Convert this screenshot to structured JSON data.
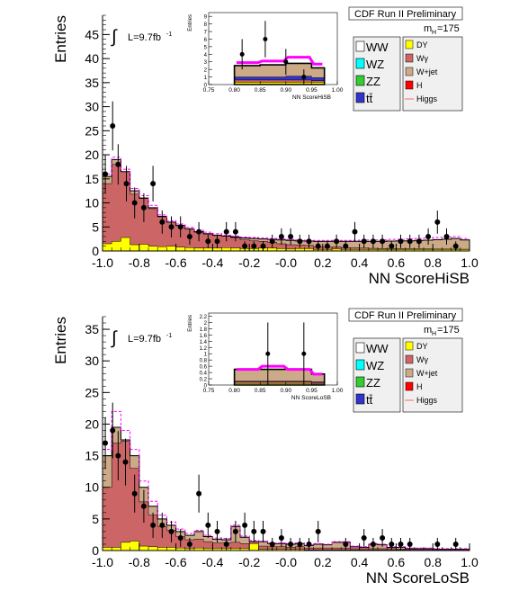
{
  "legend_colors": {
    "WW": "#ffffff",
    "WZ": "#00ffff",
    "ZZ": "#33cc33",
    "tt": "#3333cc",
    "DY": "#ffff00",
    "Wg": "#cc6666",
    "Wjet": "#ccaa88",
    "H": "#ff0000",
    "Higgs": "#ff6666",
    "signal": "#ff00ff",
    "data": "#000000"
  },
  "chart_data": [
    {
      "type": "bar",
      "panel_title": "CDF Run II Preliminary",
      "mass_label": "m",
      "mass_sub": "H",
      "mass_value": "=175",
      "lumi_prefix": "L=9.7fb",
      "lumi_sup": "-1",
      "integral_symbol": "∫",
      "xlabel": "NN ScoreHiSB",
      "ylabel": "Entries",
      "xlim": [
        -1.0,
        1.0
      ],
      "ylim": [
        0,
        49
      ],
      "y_ticks": [
        0,
        5,
        10,
        15,
        20,
        25,
        30,
        35,
        40,
        45
      ],
      "x_ticks": [
        "-1.0",
        "-0.8",
        "-0.6",
        "-0.4",
        "-0.2",
        "-0.0",
        "0.2",
        "0.4",
        "0.6",
        "0.8",
        "1.0"
      ],
      "legend_left": [
        "WW",
        "WZ",
        "ZZ",
        "tt̄"
      ],
      "legend_right": [
        "DY",
        "Wγ",
        "W+jet",
        "H",
        "Higgs"
      ],
      "bkg_total": [
        15.5,
        19,
        16.5,
        12.5,
        11,
        9,
        7.2,
        6,
        5.3,
        4.6,
        4,
        3.6,
        3.3,
        3.1,
        2.9,
        2.7,
        2.6,
        2.5,
        2.4,
        2.3,
        2.2,
        2.1,
        2.05,
        2.0,
        2.0,
        2.0,
        2.0,
        2.0,
        2.0,
        2.0,
        2.0,
        2.05,
        2.1,
        2.1,
        2.2,
        2.25,
        2.35,
        2.45,
        2.6,
        2.3
      ],
      "wg_part": [
        12.5,
        16,
        14,
        10.5,
        9.5,
        7.8,
        6.2,
        5.2,
        4.5,
        3.9,
        3.3,
        2.9,
        2.6,
        2.4,
        2.1,
        1.8,
        1.6,
        1.4,
        1.2,
        1.0,
        0.9,
        0.75,
        0.65,
        0.55,
        0.5,
        0.45,
        0.4,
        0.35,
        0.3,
        0.25,
        0.22,
        0.2,
        0.18,
        0.16,
        0.14,
        0.12,
        0.1,
        0.1,
        0.08,
        0.06
      ],
      "dy_part": [
        1.5,
        2.0,
        2.8,
        1.3,
        1.4,
        1.0,
        0.9,
        1.0,
        0.8,
        0.7,
        0.6,
        0.6,
        0.6,
        0.7,
        0.6,
        0.5,
        0.5,
        0.6,
        0.6,
        0.5,
        0.4,
        0.5,
        0.5,
        0.3,
        0.3,
        0.4,
        0.3,
        0.3,
        0.3,
        0.3,
        0.3,
        0.3,
        0.3,
        0.3,
        0.3,
        0.3,
        0.3,
        0.3,
        0.3,
        0.3
      ],
      "wjet_part": [
        1.0,
        0.8,
        0.6,
        0.5,
        0.4,
        0.4,
        0.3,
        0.3,
        0.3,
        0.3,
        0.3,
        0.4,
        0.4,
        0.4,
        0.4,
        0.4,
        0.4,
        0.4,
        0.4,
        0.4,
        0.4,
        0.4,
        0.4,
        0.4,
        0.4,
        0.4,
        0.4,
        0.4,
        0.4,
        0.4,
        0.4,
        0.4,
        0.4,
        0.4,
        0.4,
        0.4,
        0.4,
        0.4,
        0.4,
        0.4
      ],
      "signal": [
        16,
        19.5,
        17,
        13,
        11.5,
        9.5,
        7.5,
        6.3,
        5.6,
        4.9,
        4.3,
        3.9,
        3.6,
        3.3,
        3.1,
        2.9,
        2.8,
        2.7,
        2.6,
        2.5,
        2.4,
        2.3,
        2.2,
        2.2,
        2.2,
        2.2,
        2.2,
        2.2,
        2.3,
        2.3,
        2.3,
        2.4,
        2.4,
        2.5,
        2.6,
        2.7,
        2.8,
        2.9,
        3.0,
        2.6
      ],
      "data_points": [
        {
          "x": -0.985,
          "y": 16,
          "err": 4
        },
        {
          "x": -0.945,
          "y": 26,
          "err": 5.1
        },
        {
          "x": -0.915,
          "y": 18,
          "err": 4.2
        },
        {
          "x": -0.87,
          "y": 14,
          "err": 3.7
        },
        {
          "x": -0.825,
          "y": 10,
          "err": 3.2
        },
        {
          "x": -0.775,
          "y": 9,
          "err": 3
        },
        {
          "x": -0.725,
          "y": 14,
          "err": 3.7
        },
        {
          "x": -0.675,
          "y": 6,
          "err": 2.4
        },
        {
          "x": -0.625,
          "y": 5,
          "err": 2.2
        },
        {
          "x": -0.575,
          "y": 5,
          "err": 2.2
        },
        {
          "x": -0.525,
          "y": 3,
          "err": 1.7
        },
        {
          "x": -0.475,
          "y": 4,
          "err": 2
        },
        {
          "x": -0.425,
          "y": 2,
          "err": 1.4
        },
        {
          "x": -0.375,
          "y": 2,
          "err": 1.4
        },
        {
          "x": -0.325,
          "y": 4,
          "err": 2
        },
        {
          "x": -0.275,
          "y": 4,
          "err": 2
        },
        {
          "x": -0.225,
          "y": 1,
          "err": 1
        },
        {
          "x": -0.175,
          "y": 1,
          "err": 1
        },
        {
          "x": -0.125,
          "y": 1,
          "err": 1
        },
        {
          "x": -0.075,
          "y": 2,
          "err": 1.4
        },
        {
          "x": -0.025,
          "y": 3,
          "err": 1.7
        },
        {
          "x": 0.025,
          "y": 3,
          "err": 1.7
        },
        {
          "x": 0.075,
          "y": 2,
          "err": 1.4
        },
        {
          "x": 0.125,
          "y": 2,
          "err": 1.4
        },
        {
          "x": 0.175,
          "y": 1,
          "err": 1
        },
        {
          "x": 0.225,
          "y": 1,
          "err": 1
        },
        {
          "x": 0.275,
          "y": 2,
          "err": 1.4
        },
        {
          "x": 0.325,
          "y": 1,
          "err": 1
        },
        {
          "x": 0.375,
          "y": 4,
          "err": 2
        },
        {
          "x": 0.425,
          "y": 2,
          "err": 1.4
        },
        {
          "x": 0.475,
          "y": 2,
          "err": 1.4
        },
        {
          "x": 0.525,
          "y": 2,
          "err": 1.4
        },
        {
          "x": 0.575,
          "y": 1,
          "err": 1
        },
        {
          "x": 0.625,
          "y": 2,
          "err": 1.4
        },
        {
          "x": 0.675,
          "y": 2,
          "err": 1.4
        },
        {
          "x": 0.725,
          "y": 2,
          "err": 1.4
        },
        {
          "x": 0.775,
          "y": 3,
          "err": 1.7
        },
        {
          "x": 0.825,
          "y": 6,
          "err": 2.4
        },
        {
          "x": 0.875,
          "y": 3,
          "err": 1.7
        },
        {
          "x": 0.925,
          "y": 1,
          "err": 1
        }
      ],
      "inset": {
        "xlabel": "NN ScoreHiSB",
        "ylabel": "Entries",
        "xlim": [
          0.75,
          1.0
        ],
        "ylim": [
          0,
          9.5
        ],
        "y_ticks": [
          0,
          1,
          2,
          3,
          4,
          5,
          6,
          7,
          8,
          9
        ],
        "x_ticks": [
          "0.75",
          "0.80",
          "0.85",
          "0.90",
          "0.95",
          "1.00"
        ],
        "bin_edges": [
          0.8,
          0.85,
          0.9,
          0.95,
          0.975
        ],
        "bkg_total": [
          2.5,
          2.6,
          2.8,
          2.2
        ],
        "wg_part": [
          0.3,
          0.3,
          0.3,
          0.2
        ],
        "dy_part": [
          0.3,
          0.3,
          0.3,
          0.3
        ],
        "wjet_part": [
          1.0,
          1.0,
          1.1,
          0.9
        ],
        "tt_part": [
          0.4,
          0.4,
          0.5,
          0.4
        ],
        "signal": [
          2.9,
          3.1,
          3.6,
          2.7
        ],
        "data_points": [
          {
            "x": 0.815,
            "y": 4,
            "err": 2
          },
          {
            "x": 0.86,
            "y": 6,
            "err": 2.4
          },
          {
            "x": 0.9,
            "y": 3,
            "err": 1.7
          },
          {
            "x": 0.935,
            "y": 1,
            "err": 1
          }
        ]
      }
    },
    {
      "type": "bar",
      "panel_title": "CDF Run II Preliminary",
      "mass_label": "m",
      "mass_sub": "H",
      "mass_value": "=175",
      "lumi_prefix": "L=9.7fb",
      "lumi_sup": "-1",
      "integral_symbol": "∫",
      "xlabel": "NN ScoreLoSB",
      "ylabel": "Entries",
      "xlim": [
        -1.0,
        1.0
      ],
      "ylim": [
        0,
        37
      ],
      "y_ticks": [
        0,
        5,
        10,
        15,
        20,
        25,
        30,
        35
      ],
      "x_ticks": [
        "-1.0",
        "-0.8",
        "-0.6",
        "-0.4",
        "-0.2",
        "-0.0",
        "0.2",
        "0.4",
        "0.6",
        "0.8",
        "1.0"
      ],
      "legend_left": [
        "WW",
        "WZ",
        "ZZ",
        "tt̄"
      ],
      "legend_right": [
        "DY",
        "Wγ",
        "W+jet",
        "H",
        "Higgs"
      ],
      "bkg_total": [
        15,
        19.5,
        17.5,
        15,
        10,
        7,
        5,
        4,
        3,
        2.4,
        3,
        2.2,
        1.8,
        1.7,
        3.8,
        2.1,
        1.4,
        1.4,
        1.1,
        1.1,
        1.0,
        1.1,
        0.8,
        1.0,
        0.9,
        1.3,
        1.3,
        0.6,
        0.5,
        1.0,
        0.9,
        0.5,
        0.5,
        0.3,
        0.3,
        0.3,
        0.2,
        0.2,
        0.2,
        0.2
      ],
      "wg_part": [
        9.5,
        16.5,
        16,
        11.5,
        7,
        5,
        3.3,
        2.7,
        1.8,
        1.4,
        1.4,
        1.1,
        0.9,
        0.9,
        1.0,
        0.8,
        0.5,
        0.5,
        0.4,
        0.4,
        0.3,
        0.4,
        0.3,
        0.3,
        0.3,
        0.3,
        0.3,
        0.2,
        0.2,
        0.2,
        0.2,
        0.2,
        0.1,
        0.1,
        0.1,
        0.1,
        0.1,
        0.1,
        0.1,
        0.1
      ],
      "dy_part": [
        0.5,
        0.5,
        1.3,
        1.5,
        0.7,
        0.6,
        0.5,
        0.5,
        0.4,
        0.3,
        0.4,
        0.3,
        0.3,
        0.3,
        0.3,
        0.3,
        1.1,
        0.2,
        0.2,
        0.2,
        0.2,
        0.2,
        0.1,
        0.1,
        0.1,
        0.1,
        0.1,
        0.1,
        0.1,
        0.1,
        0.1,
        0.1,
        0.1,
        0.05,
        0.05,
        0.05,
        0.05,
        0.05,
        0.05,
        0.05
      ],
      "wjet_part": [
        4.5,
        2.2,
        0.2,
        1.8,
        2.0,
        1.2,
        1.0,
        0.6,
        0.6,
        0.5,
        1.0,
        0.6,
        0.4,
        0.3,
        2.3,
        0.8,
        0.3,
        0.5,
        0.3,
        0.3,
        0.3,
        0.3,
        0.2,
        0.4,
        0.3,
        0.7,
        0.7,
        0.2,
        0.1,
        0.5,
        0.4,
        0.1,
        0.2,
        0.1,
        0.1,
        0.1,
        0.05,
        0.05,
        0.05,
        0.05
      ],
      "signal": [
        16,
        22,
        19,
        16,
        11,
        7.8,
        5.6,
        4.5,
        3.4,
        2.7,
        3.2,
        2.4,
        2.0,
        1.9,
        4.0,
        2.3,
        1.6,
        1.5,
        1.2,
        1.2,
        1.1,
        1.2,
        0.9,
        1.1,
        1.0,
        1.4,
        1.4,
        0.7,
        0.6,
        1.1,
        1.0,
        0.6,
        0.6,
        0.4,
        0.4,
        0.4,
        0.3,
        0.3,
        0.3,
        0.3
      ],
      "data_points": [
        {
          "x": -0.985,
          "y": 17,
          "err": 4.1
        },
        {
          "x": -0.945,
          "y": 19,
          "err": 4.4
        },
        {
          "x": -0.915,
          "y": 15,
          "err": 3.9
        },
        {
          "x": -0.875,
          "y": 14,
          "err": 3.7
        },
        {
          "x": -0.825,
          "y": 9,
          "err": 3
        },
        {
          "x": -0.775,
          "y": 7,
          "err": 2.6
        },
        {
          "x": -0.725,
          "y": 4,
          "err": 2
        },
        {
          "x": -0.675,
          "y": 4,
          "err": 2
        },
        {
          "x": -0.625,
          "y": 3,
          "err": 1.7
        },
        {
          "x": -0.575,
          "y": 2,
          "err": 1.4
        },
        {
          "x": -0.525,
          "y": 1,
          "err": 1
        },
        {
          "x": -0.475,
          "y": 9,
          "err": 3
        },
        {
          "x": -0.425,
          "y": 4,
          "err": 2
        },
        {
          "x": -0.375,
          "y": 3,
          "err": 1.7
        },
        {
          "x": -0.325,
          "y": 1,
          "err": 1
        },
        {
          "x": -0.275,
          "y": 3,
          "err": 1.7
        },
        {
          "x": -0.225,
          "y": 4,
          "err": 2
        },
        {
          "x": -0.175,
          "y": 3,
          "err": 1.7
        },
        {
          "x": -0.125,
          "y": 3,
          "err": 1.7
        },
        {
          "x": -0.075,
          "y": 1,
          "err": 1
        },
        {
          "x": -0.025,
          "y": 2,
          "err": 1.4
        },
        {
          "x": 0.025,
          "y": 1,
          "err": 1
        },
        {
          "x": 0.075,
          "y": 1,
          "err": 1
        },
        {
          "x": 0.125,
          "y": 1,
          "err": 1
        },
        {
          "x": 0.175,
          "y": 3,
          "err": 1.7
        },
        {
          "x": 0.325,
          "y": 1,
          "err": 1
        },
        {
          "x": 0.425,
          "y": 2,
          "err": 1.4
        },
        {
          "x": 0.475,
          "y": 1,
          "err": 1
        },
        {
          "x": 0.525,
          "y": 2,
          "err": 1.4
        },
        {
          "x": 0.575,
          "y": 1,
          "err": 1
        },
        {
          "x": 0.625,
          "y": 1,
          "err": 1
        },
        {
          "x": 0.675,
          "y": 1,
          "err": 1
        },
        {
          "x": 0.825,
          "y": 1,
          "err": 1
        },
        {
          "x": 0.925,
          "y": 1,
          "err": 1
        }
      ],
      "inset": {
        "xlabel": "NN ScoreLoSB",
        "ylabel": "Entries",
        "xlim": [
          0.75,
          1.0
        ],
        "ylim": [
          0,
          2.3
        ],
        "y_ticks": [
          0,
          0.2,
          0.4,
          0.6,
          0.8,
          1.0,
          1.2,
          1.4,
          1.6,
          1.8,
          2.0,
          2.2
        ],
        "x_ticks": [
          "0.75",
          "0.80",
          "0.85",
          "0.90",
          "0.95",
          "1.00"
        ],
        "bin_edges": [
          0.8,
          0.85,
          0.9,
          0.95,
          0.975
        ],
        "bkg_total": [
          0.5,
          0.5,
          0.5,
          0.35
        ],
        "wg_part": [
          0.05,
          0.05,
          0.05,
          0.05
        ],
        "dy_part": [
          0.05,
          0.05,
          0.05,
          0.03
        ],
        "wjet_part": [
          0.3,
          0.3,
          0.3,
          0.2
        ],
        "tt_part": [
          0.02,
          0.02,
          0.02,
          0.02
        ],
        "signal": [
          0.5,
          0.6,
          0.5,
          0.35
        ],
        "data_points": [
          {
            "x": 0.865,
            "y": 1,
            "err": 1
          },
          {
            "x": 0.935,
            "y": 1,
            "err": 1
          }
        ]
      }
    }
  ]
}
